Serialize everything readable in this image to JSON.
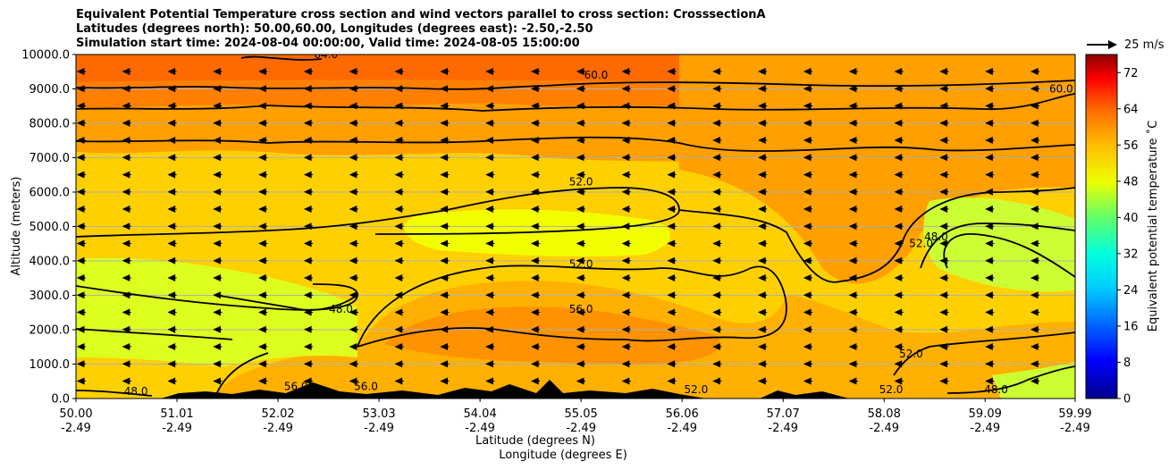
{
  "chart_data": {
    "type": "heatmap",
    "title_lines": [
      "Equivalent Potential Temperature cross section and wind vectors parallel to cross section: CrosssectionA",
      "Latitudes (degrees north): 50.00,60.00, Longitudes (degrees east): -2.50,-2.50",
      "Simulation start time: 2024-08-04 00:00:00, Valid time: 2024-08-05 15:00:00"
    ],
    "ylabel": "Altitude (meters)",
    "xlabel_lat": "Latitude (degrees N)",
    "xlabel_lon": "Longitude (degrees E)",
    "x_range": [
      50.0,
      59.99
    ],
    "ylim": [
      0,
      10000
    ],
    "y_ticks": [
      "0.0",
      "1000.0",
      "2000.0",
      "3000.0",
      "4000.0",
      "5000.0",
      "6000.0",
      "7000.0",
      "8000.0",
      "9000.0",
      "10000.0"
    ],
    "x_ticks": [
      {
        "lat": "50.00",
        "lon": "-2.49"
      },
      {
        "lat": "51.01",
        "lon": "-2.49"
      },
      {
        "lat": "52.02",
        "lon": "-2.49"
      },
      {
        "lat": "53.03",
        "lon": "-2.49"
      },
      {
        "lat": "54.04",
        "lon": "-2.49"
      },
      {
        "lat": "55.05",
        "lon": "-2.49"
      },
      {
        "lat": "56.06",
        "lon": "-2.49"
      },
      {
        "lat": "57.07",
        "lon": "-2.49"
      },
      {
        "lat": "58.08",
        "lon": "-2.49"
      },
      {
        "lat": "59.09",
        "lon": "-2.49"
      },
      {
        "lat": "59.99",
        "lon": "-2.49"
      }
    ],
    "grid": "horizontal",
    "colorbar": {
      "label": "Equivalent potential temperature $^\\circ$C",
      "label_text": "Equivalent potential temperature ˚C",
      "range": [
        0,
        76
      ],
      "ticks": [
        "0",
        "8",
        "16",
        "24",
        "32",
        "40",
        "48",
        "56",
        "64",
        "72"
      ]
    },
    "quiver_reference": "25 m/s",
    "contour_labels": [
      {
        "text": "60.0",
        "lat": 55.2,
        "alt": 9300
      },
      {
        "text": "52.0",
        "lat": 55.05,
        "alt": 6200
      },
      {
        "text": "52.0",
        "lat": 55.05,
        "alt": 3800
      },
      {
        "text": "56.0",
        "lat": 55.05,
        "alt": 2500
      },
      {
        "text": "48.0",
        "lat": 52.65,
        "alt": 2500
      },
      {
        "text": "56.0",
        "lat": 52.9,
        "alt": 250
      },
      {
        "text": "56.0",
        "lat": 52.2,
        "alt": 250
      },
      {
        "text": "52.0",
        "lat": 56.2,
        "alt": 150
      },
      {
        "text": "52.0",
        "lat": 58.15,
        "alt": 150
      },
      {
        "text": "52.0",
        "lat": 58.35,
        "alt": 1200
      },
      {
        "text": "48.0",
        "lat": 58.6,
        "alt": 4600
      },
      {
        "text": "52.0",
        "lat": 58.45,
        "alt": 4400
      },
      {
        "text": "48.0",
        "lat": 59.2,
        "alt": 150
      },
      {
        "text": "60.0",
        "lat": 59.85,
        "alt": 8900
      },
      {
        "text": "64.0",
        "lat": 52.5,
        "alt": 9900
      },
      {
        "text": "48.0",
        "lat": 50.6,
        "alt": 100
      }
    ]
  }
}
